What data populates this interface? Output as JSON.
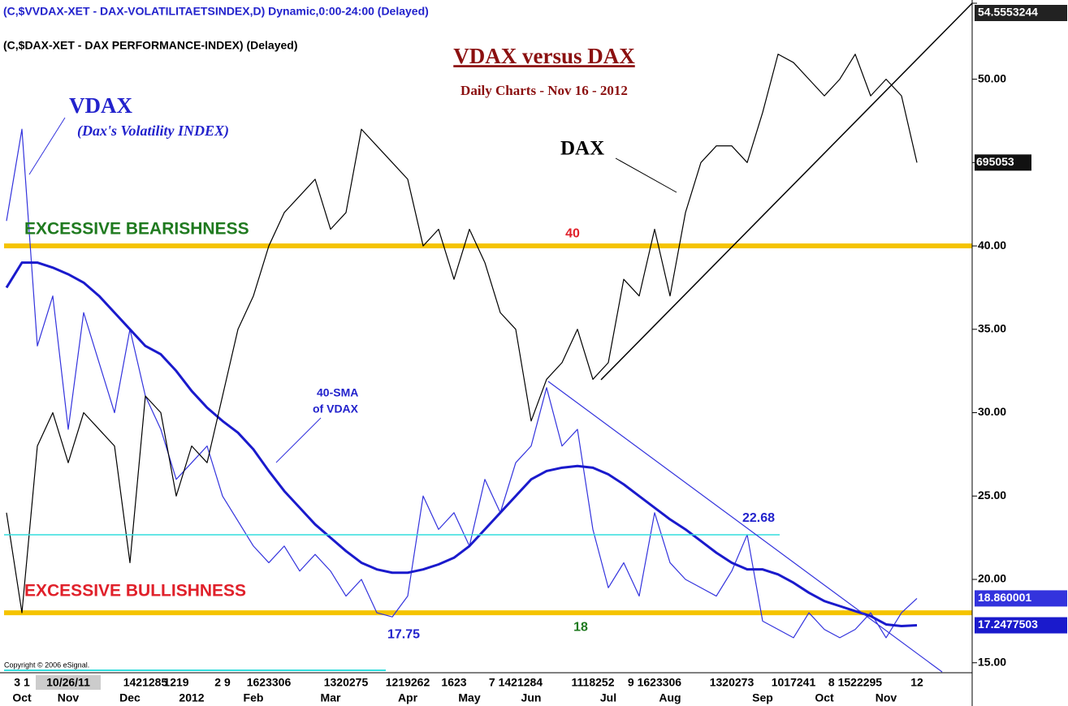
{
  "chart_data": {
    "type": "line",
    "header_vdax": "(C,$VVDAX-XET - DAX-VOLATILITAETSINDEX,D) Dynamic,0:00-24:00 (Delayed)",
    "header_dax": "(C,$DAX-XET - DAX PERFORMANCE-INDEX)  (Delayed)",
    "title": "VDAX versus DAX",
    "subtitle": "Daily Charts - Nov 16 - 2012",
    "annotations": {
      "vdax": "VDAX",
      "vdax_sub": "(Dax's Volatility INDEX)",
      "dax": "DAX",
      "sma1": "40-SMA",
      "sma2": "of VDAX",
      "dax_last": "695053",
      "copyright": "Copyright © 2006 eSignal."
    },
    "levels": [
      {
        "name": "EXCESSIVE BEARISHNESS",
        "value": 40,
        "label": "40",
        "color": "#f5c400"
      },
      {
        "name": "EXCESSIVE BULLISHNESS",
        "value": 18,
        "label": "18",
        "color": "#f5c400"
      }
    ],
    "categories": [
      null,
      "Oct",
      null,
      null,
      "Nov",
      null,
      null,
      null,
      "Dec",
      null,
      null,
      null,
      "2012",
      null,
      null,
      null,
      "Feb",
      null,
      null,
      null,
      null,
      "Mar",
      null,
      null,
      null,
      null,
      "Apr",
      null,
      null,
      null,
      "May",
      null,
      null,
      null,
      "Jun",
      null,
      null,
      null,
      null,
      "Jul",
      null,
      null,
      null,
      "Aug",
      null,
      null,
      null,
      null,
      null,
      "Sep",
      null,
      null,
      null,
      "Oct",
      null,
      null,
      null,
      "Nov",
      null,
      null
    ],
    "day_labels": [
      null,
      "3 1",
      null,
      null,
      "10/26/11",
      null,
      null,
      null,
      null,
      "1421285",
      null,
      "1219",
      null,
      null,
      "2 9",
      null,
      null,
      "1623306",
      null,
      null,
      null,
      null,
      "1320275",
      null,
      null,
      null,
      "1219262",
      null,
      null,
      "1623",
      null,
      null,
      null,
      "7 1421284",
      null,
      null,
      null,
      null,
      "1118252",
      null,
      null,
      null,
      "9 1623306",
      null,
      null,
      null,
      null,
      "1320273",
      null,
      null,
      null,
      "1017241",
      null,
      null,
      null,
      "8 1522295",
      null,
      null,
      null,
      "12"
    ],
    "series": [
      {
        "name": "VDAX",
        "color": "#3333dd",
        "values": [
          41.5,
          47,
          34,
          37,
          29,
          36,
          33,
          30,
          35,
          31,
          29,
          26,
          27,
          28,
          25,
          23.5,
          22,
          21,
          22,
          20.5,
          21.5,
          20.5,
          19,
          20,
          18,
          17.75,
          19,
          25,
          23,
          24,
          22,
          26,
          24,
          27,
          28,
          31.5,
          28,
          29,
          23,
          19.5,
          21,
          19,
          24,
          21,
          20,
          19.5,
          19,
          20.5,
          22.68,
          17.5,
          17,
          16.5,
          18,
          17,
          16.5,
          17,
          18,
          16.5,
          18,
          18.860001
        ],
        "value_labels": [
          null,
          null,
          null,
          null,
          null,
          null,
          null,
          null,
          null,
          null,
          null,
          null,
          null,
          null,
          null,
          null,
          null,
          null,
          null,
          null,
          null,
          null,
          null,
          null,
          null,
          "17.75",
          null,
          null,
          null,
          null,
          null,
          null,
          null,
          null,
          null,
          null,
          null,
          null,
          null,
          null,
          null,
          null,
          null,
          null,
          null,
          null,
          null,
          null,
          "22.68",
          null,
          null,
          null,
          null,
          null,
          null,
          null,
          null,
          null,
          null,
          "18.860001"
        ]
      },
      {
        "name": "40-SMA of VDAX",
        "color": "#1a1acc",
        "values": [
          37.5,
          39,
          39,
          38.7,
          38.3,
          37.8,
          37,
          36,
          35,
          34,
          33.5,
          32.5,
          31.3,
          30.3,
          29.5,
          28.8,
          27.8,
          26.5,
          25.3,
          24.3,
          23.3,
          22.5,
          21.7,
          21,
          20.6,
          20.4,
          20.4,
          20.6,
          20.9,
          21.3,
          22,
          23,
          24,
          25,
          26,
          26.5,
          26.7,
          26.8,
          26.7,
          26.3,
          25.7,
          25,
          24.3,
          23.6,
          23,
          22.3,
          21.6,
          21,
          20.6,
          20.6,
          20.3,
          19.8,
          19.2,
          18.7,
          18.4,
          18.1,
          17.8,
          17.3,
          17.2,
          17.2477503
        ],
        "value_labels": [
          null,
          null,
          null,
          null,
          null,
          null,
          null,
          null,
          null,
          null,
          null,
          null,
          null,
          null,
          null,
          null,
          null,
          null,
          null,
          null,
          null,
          null,
          null,
          null,
          null,
          null,
          null,
          null,
          null,
          null,
          null,
          null,
          null,
          null,
          null,
          null,
          null,
          null,
          null,
          null,
          null,
          null,
          null,
          null,
          null,
          null,
          null,
          null,
          null,
          null,
          null,
          null,
          null,
          null,
          null,
          null,
          null,
          null,
          null,
          "17.2477503"
        ]
      },
      {
        "name": "DAX",
        "color": "#000000",
        "values": [
          24,
          18,
          28,
          30,
          27,
          30,
          29,
          28,
          21,
          31,
          30,
          25,
          28,
          27,
          31,
          35,
          37,
          40,
          42,
          43,
          44,
          41,
          42,
          47,
          46,
          45,
          44,
          40,
          41,
          38,
          41,
          39,
          36,
          35,
          29.5,
          32,
          33,
          35,
          32,
          33,
          38,
          37,
          41,
          37,
          42,
          45,
          46,
          46,
          45,
          48,
          51.5,
          51,
          50,
          49,
          50,
          51.5,
          49,
          50,
          49,
          45
        ]
      }
    ],
    "ylim": [
      14.5,
      54.5553244
    ],
    "yticks": [
      {
        "value": 15,
        "label": "15.00"
      },
      {
        "value": 20,
        "label": "20.00"
      },
      {
        "value": 25,
        "label": "25.00"
      },
      {
        "value": 30,
        "label": "30.00"
      },
      {
        "value": 35,
        "label": "35.00"
      },
      {
        "value": 40,
        "label": "40.00"
      },
      {
        "value": 45,
        "label": "45.00"
      },
      {
        "value": 50,
        "label": "50.00"
      },
      54.5553244
    ]
  }
}
